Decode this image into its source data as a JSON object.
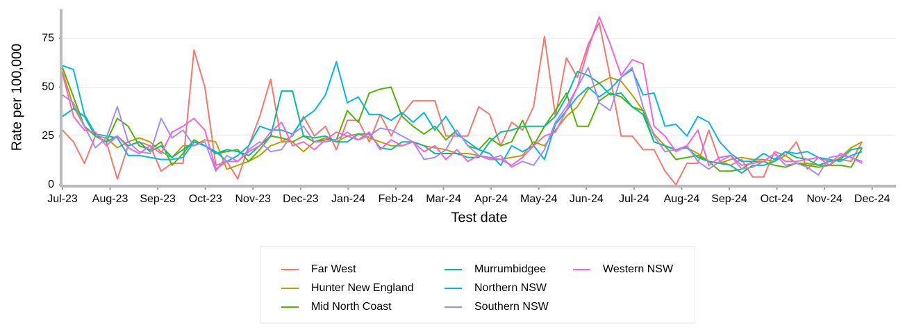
{
  "chart_data": {
    "type": "line",
    "x_label": "Test date",
    "y_label": "Rate per 100,000",
    "x": [
      0,
      0.23,
      0.46,
      0.69,
      0.92,
      1.15,
      1.38,
      1.61,
      1.84,
      2.07,
      2.3,
      2.53,
      2.76,
      2.99,
      3.22,
      3.45,
      3.68,
      3.91,
      4.14,
      4.37,
      4.6,
      4.83,
      5.06,
      5.29,
      5.52,
      5.75,
      5.98,
      6.21,
      6.44,
      6.67,
      6.9,
      7.13,
      7.36,
      7.59,
      7.82,
      8.05,
      8.28,
      8.51,
      8.74,
      8.97,
      9.2,
      9.43,
      9.66,
      9.89,
      10.12,
      10.35,
      10.58,
      10.81,
      11.04,
      11.27,
      11.5,
      11.73,
      11.96,
      12.19,
      12.42,
      12.65,
      12.88,
      13.11,
      13.34,
      13.57,
      13.8,
      14.03,
      14.26,
      14.49,
      14.72,
      14.95,
      15.18,
      15.41,
      15.64,
      15.87,
      16.1,
      16.33,
      16.56,
      16.79
    ],
    "xlim": [
      0,
      17.5
    ],
    "xticks": [
      {
        "value": 0,
        "label": "Jul-23"
      },
      {
        "value": 1,
        "label": "Aug-23"
      },
      {
        "value": 2,
        "label": "Sep-23"
      },
      {
        "value": 3,
        "label": "Oct-23"
      },
      {
        "value": 4,
        "label": "Nov-23"
      },
      {
        "value": 5,
        "label": "Dec-23"
      },
      {
        "value": 6,
        "label": "Jan-24"
      },
      {
        "value": 7,
        "label": "Feb-24"
      },
      {
        "value": 8,
        "label": "Mar-24"
      },
      {
        "value": 9,
        "label": "Apr-24"
      },
      {
        "value": 10,
        "label": "May-24"
      },
      {
        "value": 11,
        "label": "Jun-24"
      },
      {
        "value": 12,
        "label": "Jul-24"
      },
      {
        "value": 13,
        "label": "Aug-24"
      },
      {
        "value": 14,
        "label": "Sep-24"
      },
      {
        "value": 15,
        "label": "Oct-24"
      },
      {
        "value": 16,
        "label": "Nov-24"
      },
      {
        "value": 17,
        "label": "Dec-24"
      }
    ],
    "ylim": [
      0,
      90
    ],
    "yticks": [
      0,
      25,
      50,
      75
    ],
    "grid": true,
    "series": [
      {
        "name": "Far West",
        "color": "#F8766D",
        "values": [
          28,
          22,
          11,
          25,
          22,
          3,
          20,
          22,
          20,
          7,
          11,
          11,
          69,
          50,
          10,
          12,
          3,
          20,
          35,
          54,
          22,
          25,
          35,
          25,
          30,
          18,
          33,
          33,
          22,
          36,
          25,
          36,
          43,
          43,
          43,
          25,
          25,
          25,
          40,
          36,
          20,
          32,
          28,
          40,
          76,
          35,
          65,
          55,
          72,
          83,
          55,
          25,
          25,
          18,
          18,
          7,
          0,
          11,
          11,
          28,
          12,
          10,
          13,
          4,
          4,
          17,
          15,
          22,
          8,
          14,
          12,
          13,
          12,
          22
        ]
      },
      {
        "name": "Hunter New England",
        "color": "#C49A00",
        "values": [
          58,
          40,
          30,
          25,
          24,
          19,
          22,
          24,
          22,
          17,
          14,
          20,
          20,
          23,
          22,
          8,
          10,
          12,
          15,
          20,
          22,
          22,
          17,
          22,
          24,
          22,
          25,
          26,
          24,
          22,
          20,
          20,
          22,
          20,
          19,
          18,
          16,
          16,
          15,
          13,
          13,
          14,
          15,
          22,
          20,
          28,
          35,
          40,
          49,
          52,
          55,
          53,
          46,
          38,
          26,
          20,
          18,
          19,
          16,
          12,
          11,
          13,
          14,
          13,
          13,
          12,
          15,
          11,
          11,
          10,
          10,
          14,
          19,
          22
        ]
      },
      {
        "name": "Mid North Coast",
        "color": "#53B400",
        "values": [
          60,
          45,
          30,
          25,
          22,
          34,
          30,
          20,
          18,
          22,
          10,
          16,
          23,
          20,
          16,
          17,
          18,
          12,
          18,
          25,
          24,
          22,
          25,
          22,
          23,
          23,
          38,
          32,
          47,
          49,
          50,
          35,
          30,
          26,
          30,
          23,
          28,
          20,
          18,
          24,
          20,
          22,
          33,
          20,
          30,
          38,
          47,
          30,
          30,
          43,
          47,
          45,
          40,
          38,
          22,
          20,
          13,
          14,
          15,
          12,
          7,
          7,
          8,
          12,
          12,
          10,
          9,
          11,
          10,
          9,
          10,
          10,
          9,
          19
        ]
      },
      {
        "name": "Murrumbidgee",
        "color": "#00C094",
        "values": [
          35,
          39,
          35,
          25,
          22,
          25,
          20,
          22,
          17,
          20,
          14,
          18,
          22,
          20,
          16,
          18,
          17,
          15,
          20,
          25,
          48,
          48,
          25,
          24,
          25,
          22,
          22,
          26,
          26,
          19,
          18,
          22,
          22,
          20,
          16,
          16,
          16,
          14,
          14,
          22,
          27,
          28,
          30,
          30,
          30,
          35,
          45,
          58,
          56,
          52,
          46,
          47,
          40,
          36,
          22,
          20,
          18,
          19,
          14,
          12,
          11,
          10,
          6,
          10,
          10,
          12,
          17,
          14,
          13,
          10,
          12,
          13,
          18,
          19
        ]
      },
      {
        "name": "Northern NSW",
        "color": "#00B6EB",
        "values": [
          61,
          59,
          36,
          26,
          25,
          24,
          15,
          15,
          14,
          13,
          13,
          14,
          22,
          20,
          17,
          12,
          15,
          20,
          30,
          28,
          28,
          26,
          34,
          38,
          46,
          63,
          42,
          45,
          36,
          36,
          33,
          37,
          32,
          37,
          28,
          35,
          26,
          22,
          18,
          16,
          10,
          20,
          17,
          20,
          13,
          31,
          38,
          45,
          50,
          45,
          49,
          55,
          59,
          46,
          47,
          30,
          31,
          25,
          35,
          32,
          22,
          16,
          12,
          12,
          16,
          13,
          17,
          16,
          17,
          14,
          13,
          12,
          15,
          17
        ]
      },
      {
        "name": "Southern NSW",
        "color": "#A58AFF",
        "values": [
          46,
          42,
          30,
          19,
          24,
          40,
          22,
          17,
          16,
          34,
          24,
          28,
          20,
          22,
          7,
          15,
          12,
          18,
          22,
          17,
          18,
          26,
          30,
          22,
          22,
          23,
          27,
          23,
          25,
          29,
          28,
          25,
          22,
          13,
          14,
          18,
          28,
          20,
          15,
          13,
          15,
          9,
          12,
          10,
          18,
          32,
          40,
          50,
          60,
          42,
          38,
          55,
          60,
          40,
          25,
          17,
          18,
          20,
          12,
          8,
          12,
          15,
          8,
          9,
          12,
          16,
          10,
          11,
          9,
          5,
          14,
          15,
          14,
          12
        ]
      },
      {
        "name": "Western NSW",
        "color": "#FB61D7",
        "values": [
          57,
          35,
          28,
          27,
          20,
          25,
          19,
          16,
          20,
          16,
          27,
          30,
          34,
          28,
          8,
          12,
          12,
          17,
          20,
          27,
          32,
          20,
          22,
          18,
          23,
          27,
          25,
          23,
          27,
          18,
          23,
          20,
          22,
          17,
          20,
          13,
          18,
          12,
          15,
          14,
          13,
          10,
          14,
          20,
          25,
          27,
          38,
          50,
          70,
          86,
          72,
          56,
          64,
          62,
          30,
          25,
          17,
          20,
          28,
          10,
          14,
          15,
          10,
          11,
          12,
          16,
          12,
          12,
          13,
          14,
          10,
          16,
          14,
          11
        ]
      }
    ]
  }
}
